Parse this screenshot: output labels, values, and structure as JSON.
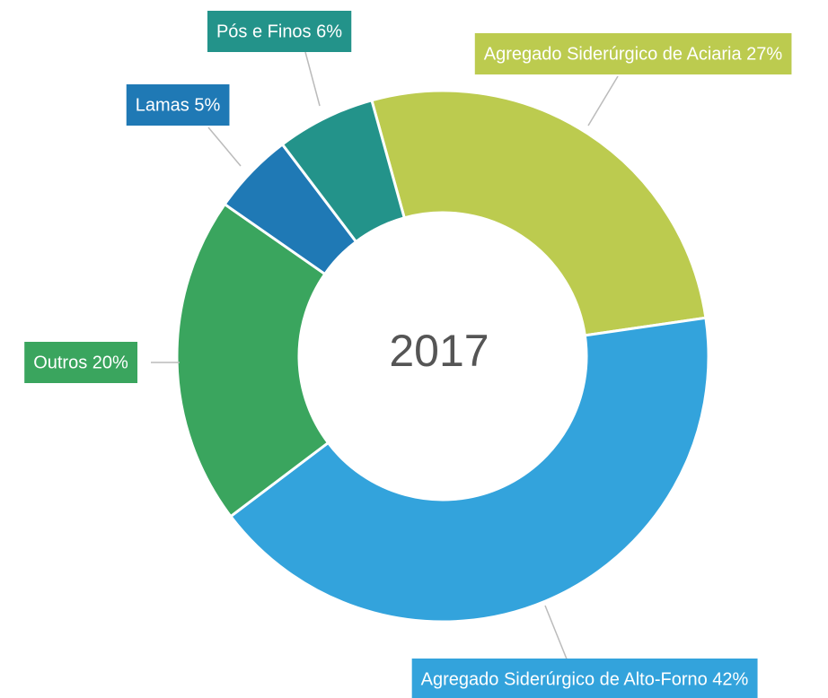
{
  "chart_data": {
    "type": "donut",
    "title": "2017",
    "values": [
      27,
      42,
      20,
      5,
      6
    ],
    "value_labels": [
      "Agregado Siderúrgico de Aciaria 27%",
      "Agregado Siderúrgico de Alto-Forno 42%",
      "Outros 20%",
      "Lamas 5%",
      "Pós e Finos 6%"
    ],
    "colors": [
      "#bccb4f",
      "#33a3dc",
      "#3aa55e",
      "#1f79b5",
      "#23938a"
    ]
  }
}
